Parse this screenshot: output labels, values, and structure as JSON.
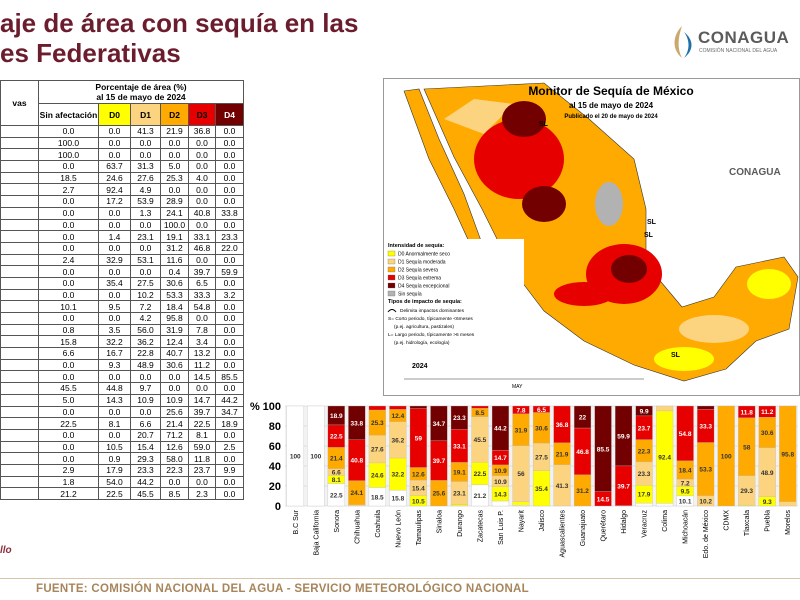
{
  "header": {
    "title_lines": [
      "aje de área con sequía en las",
      "es Federativas"
    ],
    "logo": "CONAGUA",
    "logo_sub": "COMISIÓN NACIONAL DEL AGUA"
  },
  "table": {
    "first_header": "vas",
    "group_header": [
      "Porcentaje de área (%)",
      "al 15 de mayo de 2024"
    ],
    "columns": [
      "Sin afectación",
      "D0",
      "D1",
      "D2",
      "D3",
      "D4"
    ],
    "rows": [
      [
        "0.0",
        "0.0",
        "41.3",
        "21.9",
        "36.8",
        "0.0"
      ],
      [
        "100.0",
        "0.0",
        "0.0",
        "0.0",
        "0.0",
        "0.0"
      ],
      [
        "100.0",
        "0.0",
        "0.0",
        "0.0",
        "0.0",
        "0.0"
      ],
      [
        "0.0",
        "63.7",
        "31.3",
        "5.0",
        "0.0",
        "0.0"
      ],
      [
        "18.5",
        "24.6",
        "27.6",
        "25.3",
        "4.0",
        "0.0"
      ],
      [
        "2.7",
        "92.4",
        "4.9",
        "0.0",
        "0.0",
        "0.0"
      ],
      [
        "0.0",
        "17.2",
        "53.9",
        "28.9",
        "0.0",
        "0.0"
      ],
      [
        "0.0",
        "0.0",
        "1.3",
        "24.1",
        "40.8",
        "33.8"
      ],
      [
        "0.0",
        "0.0",
        "0.0",
        "100.0",
        "0.0",
        "0.0"
      ],
      [
        "0.0",
        "1.4",
        "23.1",
        "19.1",
        "33.1",
        "23.3"
      ],
      [
        "0.0",
        "0.0",
        "0.0",
        "31.2",
        "46.8",
        "22.0"
      ],
      [
        "2.4",
        "32.9",
        "53.1",
        "11.6",
        "0.0",
        "0.0"
      ],
      [
        "0.0",
        "0.0",
        "0.0",
        "0.4",
        "39.7",
        "59.9"
      ],
      [
        "0.0",
        "35.4",
        "27.5",
        "30.6",
        "6.5",
        "0.0"
      ],
      [
        "0.0",
        "0.0",
        "10.2",
        "53.3",
        "33.3",
        "3.2"
      ],
      [
        "10.1",
        "9.5",
        "7.2",
        "18.4",
        "54.8",
        "0.0"
      ],
      [
        "0.0",
        "0.0",
        "4.2",
        "95.8",
        "0.0",
        "0.0"
      ],
      [
        "0.8",
        "3.5",
        "56.0",
        "31.9",
        "7.8",
        "0.0"
      ],
      [
        "15.8",
        "32.2",
        "36.2",
        "12.4",
        "3.4",
        "0.0"
      ],
      [
        "6.6",
        "16.7",
        "22.8",
        "40.7",
        "13.2",
        "0.0"
      ],
      [
        "0.0",
        "9.3",
        "48.9",
        "30.6",
        "11.2",
        "0.0"
      ],
      [
        "0.0",
        "0.0",
        "0.0",
        "0.0",
        "14.5",
        "85.5"
      ],
      [
        "45.5",
        "44.8",
        "9.7",
        "0.0",
        "0.0",
        "0.0"
      ],
      [
        "5.0",
        "14.3",
        "10.9",
        "10.9",
        "14.7",
        "44.2"
      ],
      [
        "0.0",
        "0.0",
        "0.0",
        "25.6",
        "39.7",
        "34.7"
      ],
      [
        "22.5",
        "8.1",
        "6.6",
        "21.4",
        "22.5",
        "18.9"
      ],
      [
        "0.0",
        "0.0",
        "20.7",
        "71.2",
        "8.1",
        "0.0"
      ],
      [
        "0.0",
        "10.5",
        "15.4",
        "12.6",
        "59.0",
        "2.5"
      ],
      [
        "0.0",
        "0.9",
        "29.3",
        "58.0",
        "11.8",
        "0.0"
      ],
      [
        "2.9",
        "17.9",
        "23.3",
        "22.3",
        "23.7",
        "9.9"
      ],
      [
        "1.8",
        "54.0",
        "44.2",
        "0.0",
        "0.0",
        "0.0"
      ],
      [
        "21.2",
        "22.5",
        "45.5",
        "8.5",
        "2.3",
        "0.0"
      ]
    ]
  },
  "map": {
    "title": "Monitor de Sequía de México",
    "date": "al 15 de mayo de 2024",
    "published": "Publicado el 20 de mayo de 2024",
    "logo": "CONAGUA",
    "legend_title": "Intensidad de sequía:",
    "legend": [
      "D0 Anormalmente seco",
      "D1 Sequía moderada",
      "D2 Sequía severa",
      "D3 Sequía extrema",
      "D4 Sequía excepcional",
      "Sin sequía"
    ],
    "impact_title": "Tipos de impacto de sequía:",
    "impacts": [
      "Delimita impactos dominantes",
      "S= Corto periodo, típicamente <6meses",
      "(p.ej. agricultura, pastizales)",
      "L= Largo periodo, típicamente >6 meses",
      "(p.ej. hidrología, ecología)"
    ],
    "region_labels": [
      "SL",
      "SL",
      "SL",
      "SL"
    ],
    "year": "2024",
    "month": "MAY"
  },
  "chart_data": {
    "type": "bar",
    "stacked": true,
    "ylabel": "%",
    "categories": [
      "B.C Sur",
      "Baja California",
      "Sonora",
      "Chihuahua",
      "Coahuila",
      "Nuevo León",
      "Tamaulipas",
      "Sinaloa",
      "Durango",
      "Zacatecas",
      "San Luis P.",
      "Nayarit",
      "Jalisco",
      "Aguascalientes",
      "Guanajuato",
      "Querétaro",
      "Hidalgo",
      "Veracruz",
      "Colima",
      "Michoacán",
      "Edo. de México",
      "CDMX",
      "Tlaxcala",
      "Puebla",
      "Morelos"
    ],
    "series": [
      {
        "color": "#ffffff",
        "values": [
          100,
          100,
          22.5,
          0,
          18.5,
          15.8,
          0,
          0,
          0,
          21.2,
          5.0,
          0.8,
          0,
          0,
          0,
          0,
          0,
          2.9,
          2.7,
          10.1,
          0,
          0,
          0,
          0,
          0
        ]
      },
      {
        "color": "#ffff00",
        "values": [
          0,
          0,
          8.1,
          0,
          24.6,
          32.2,
          10.5,
          0,
          1.4,
          22.5,
          14.3,
          3.5,
          35.4,
          0,
          0,
          0,
          0,
          17.9,
          92.4,
          9.5,
          0,
          0,
          0.9,
          9.3,
          0
        ]
      },
      {
        "color": "#fcd37f",
        "values": [
          0,
          0,
          6.6,
          1.3,
          27.6,
          36.2,
          15.4,
          0,
          23.1,
          45.5,
          10.9,
          56.0,
          27.5,
          41.3,
          0,
          0,
          0,
          23.3,
          4.9,
          7.2,
          10.2,
          0,
          29.3,
          48.9,
          4.2
        ]
      },
      {
        "color": "#ffaa00",
        "values": [
          0,
          0,
          21.4,
          24.1,
          25.3,
          12.4,
          12.6,
          25.6,
          19.1,
          8.5,
          10.9,
          31.9,
          30.6,
          21.9,
          31.2,
          0,
          0.4,
          22.3,
          0,
          18.4,
          53.3,
          100,
          58.0,
          30.6,
          95.8
        ]
      },
      {
        "color": "#e60000",
        "values": [
          0,
          0,
          22.5,
          40.8,
          4.0,
          3.4,
          59.0,
          39.7,
          33.1,
          2.3,
          14.7,
          7.8,
          6.5,
          36.8,
          46.8,
          14.5,
          39.7,
          23.7,
          0,
          54.8,
          33.3,
          0,
          11.8,
          11.2,
          0
        ]
      },
      {
        "color": "#730000",
        "values": [
          0,
          0,
          18.9,
          33.8,
          0,
          0,
          2.5,
          34.7,
          23.3,
          0,
          44.2,
          0,
          0,
          0,
          22.0,
          85.5,
          59.9,
          9.9,
          0,
          0,
          3.2,
          0,
          0,
          0,
          0
        ]
      }
    ],
    "ylim": [
      0,
      100
    ],
    "yticks": [
      0,
      20,
      40,
      60,
      80,
      100
    ],
    "grid": true
  },
  "footer": "FUENTE: COMISIÓN NACIONAL DEL AGUA - SERVICIO METEOROLÓGICO NACIONAL",
  "corner_note": "llo"
}
